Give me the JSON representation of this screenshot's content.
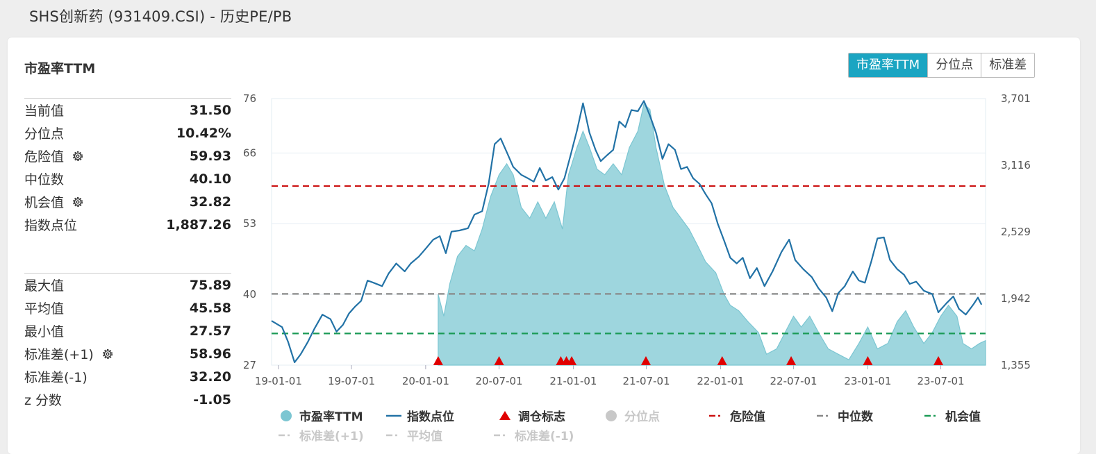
{
  "header": {
    "title": "SHS创新药 (931409.CSI) - 历史PE/PB"
  },
  "panel": {
    "title": "市盈率TTM"
  },
  "tabs": [
    {
      "label": "市盈率TTM",
      "active": true
    },
    {
      "label": "分位点",
      "active": false
    },
    {
      "label": "标准差",
      "active": false
    }
  ],
  "stats_top": [
    {
      "label": "当前值",
      "value": "31.50",
      "gear": false
    },
    {
      "label": "分位点",
      "value": "10.42%",
      "gear": false
    },
    {
      "label": "危险值",
      "value": "59.93",
      "gear": true
    },
    {
      "label": "中位数",
      "value": "40.10",
      "gear": false
    },
    {
      "label": "机会值",
      "value": "32.82",
      "gear": true
    },
    {
      "label": "指数点位",
      "value": "1,887.26",
      "gear": false
    }
  ],
  "stats_bottom": [
    {
      "label": "最大值",
      "value": "75.89",
      "gear": false
    },
    {
      "label": "平均值",
      "value": "45.58",
      "gear": false
    },
    {
      "label": "最小值",
      "value": "27.57",
      "gear": false
    },
    {
      "label": "标准差(+1)",
      "value": "58.96",
      "gear": true
    },
    {
      "label": "标准差(-1)",
      "value": "32.20",
      "gear": false
    },
    {
      "label": "z 分数",
      "value": "-1.05",
      "gear": false
    }
  ],
  "chart_data": {
    "type": "area",
    "left_axis": {
      "ticks": [
        "76",
        "66",
        "53",
        "40",
        "27"
      ],
      "range": [
        27,
        76
      ]
    },
    "right_axis": {
      "ticks": [
        "3,701",
        "3,116",
        "2,529",
        "1,942",
        "1,355"
      ],
      "range": [
        1355,
        3701
      ]
    },
    "x_ticks": [
      "19-01-01",
      "19-07-01",
      "20-01-01",
      "20-07-01",
      "21-01-01",
      "21-07-01",
      "22-01-01",
      "22-07-01",
      "23-01-01",
      "23-07-01"
    ],
    "x_range": [
      "2018-12-15",
      "2023-10-20"
    ],
    "pe_series": {
      "name": "市盈率TTM",
      "start": "2020-02-01",
      "points": [
        [
          "2020-02-01",
          40
        ],
        [
          "2020-02-15",
          36
        ],
        [
          "2020-03-01",
          42
        ],
        [
          "2020-03-20",
          47
        ],
        [
          "2020-04-10",
          49
        ],
        [
          "2020-05-01",
          48
        ],
        [
          "2020-05-20",
          52
        ],
        [
          "2020-06-10",
          58
        ],
        [
          "2020-07-01",
          62
        ],
        [
          "2020-07-20",
          64
        ],
        [
          "2020-08-05",
          62
        ],
        [
          "2020-08-25",
          56
        ],
        [
          "2020-09-15",
          54
        ],
        [
          "2020-10-05",
          57
        ],
        [
          "2020-10-25",
          54
        ],
        [
          "2020-11-15",
          57
        ],
        [
          "2020-12-05",
          52
        ],
        [
          "2020-12-20",
          62
        ],
        [
          "2021-01-10",
          67
        ],
        [
          "2021-01-25",
          70
        ],
        [
          "2021-02-10",
          67
        ],
        [
          "2021-03-01",
          63
        ],
        [
          "2021-03-20",
          62
        ],
        [
          "2021-04-10",
          64
        ],
        [
          "2021-05-01",
          62
        ],
        [
          "2021-05-20",
          67
        ],
        [
          "2021-06-10",
          70
        ],
        [
          "2021-06-25",
          75
        ],
        [
          "2021-07-10",
          74
        ],
        [
          "2021-07-25",
          67
        ],
        [
          "2021-08-15",
          60
        ],
        [
          "2021-09-05",
          56
        ],
        [
          "2021-09-25",
          54
        ],
        [
          "2021-10-15",
          52
        ],
        [
          "2021-11-05",
          49
        ],
        [
          "2021-11-25",
          46
        ],
        [
          "2021-12-20",
          44
        ],
        [
          "2022-01-10",
          40
        ],
        [
          "2022-01-25",
          38
        ],
        [
          "2022-02-15",
          37
        ],
        [
          "2022-03-10",
          35
        ],
        [
          "2022-04-05",
          33
        ],
        [
          "2022-04-25",
          29
        ],
        [
          "2022-05-20",
          30
        ],
        [
          "2022-06-10",
          33
        ],
        [
          "2022-07-01",
          36
        ],
        [
          "2022-07-20",
          34
        ],
        [
          "2022-08-10",
          36
        ],
        [
          "2022-09-01",
          33
        ],
        [
          "2022-09-25",
          30
        ],
        [
          "2022-10-20",
          29
        ],
        [
          "2022-11-15",
          28
        ],
        [
          "2022-12-10",
          31
        ],
        [
          "2023-01-01",
          34
        ],
        [
          "2023-01-25",
          30
        ],
        [
          "2023-02-20",
          31
        ],
        [
          "2023-03-15",
          35
        ],
        [
          "2023-04-05",
          37
        ],
        [
          "2023-04-25",
          34
        ],
        [
          "2023-05-20",
          31
        ],
        [
          "2023-06-10",
          33
        ],
        [
          "2023-07-01",
          36
        ],
        [
          "2023-07-20",
          38
        ],
        [
          "2023-08-10",
          36
        ],
        [
          "2023-08-25",
          31
        ],
        [
          "2023-09-15",
          30
        ],
        [
          "2023-10-05",
          31
        ],
        [
          "2023-10-20",
          31.5
        ]
      ]
    },
    "index_series": {
      "name": "指数点位",
      "points": [
        [
          "2018-12-15",
          1745
        ],
        [
          "2019-01-10",
          1690
        ],
        [
          "2019-01-25",
          1560
        ],
        [
          "2019-02-10",
          1380
        ],
        [
          "2019-02-25",
          1450
        ],
        [
          "2019-03-15",
          1560
        ],
        [
          "2019-04-01",
          1680
        ],
        [
          "2019-04-20",
          1800
        ],
        [
          "2019-05-10",
          1760
        ],
        [
          "2019-05-25",
          1650
        ],
        [
          "2019-06-10",
          1710
        ],
        [
          "2019-06-25",
          1810
        ],
        [
          "2019-07-10",
          1870
        ],
        [
          "2019-07-25",
          1920
        ],
        [
          "2019-08-10",
          2100
        ],
        [
          "2019-08-25",
          2080
        ],
        [
          "2019-09-15",
          2050
        ],
        [
          "2019-10-01",
          2160
        ],
        [
          "2019-10-20",
          2250
        ],
        [
          "2019-11-10",
          2180
        ],
        [
          "2019-11-25",
          2250
        ],
        [
          "2019-12-15",
          2310
        ],
        [
          "2020-01-01",
          2380
        ],
        [
          "2020-01-20",
          2460
        ],
        [
          "2020-02-05",
          2490
        ],
        [
          "2020-02-20",
          2340
        ],
        [
          "2020-03-05",
          2530
        ],
        [
          "2020-03-25",
          2540
        ],
        [
          "2020-04-15",
          2560
        ],
        [
          "2020-05-01",
          2680
        ],
        [
          "2020-05-20",
          2710
        ],
        [
          "2020-06-05",
          2950
        ],
        [
          "2020-06-20",
          3300
        ],
        [
          "2020-07-05",
          3350
        ],
        [
          "2020-07-20",
          3230
        ],
        [
          "2020-08-05",
          3100
        ],
        [
          "2020-08-25",
          3030
        ],
        [
          "2020-09-10",
          3000
        ],
        [
          "2020-09-25",
          2970
        ],
        [
          "2020-10-10",
          3090
        ],
        [
          "2020-10-25",
          2980
        ],
        [
          "2020-11-10",
          3010
        ],
        [
          "2020-11-25",
          2900
        ],
        [
          "2020-12-10",
          3000
        ],
        [
          "2020-12-25",
          3200
        ],
        [
          "2021-01-10",
          3420
        ],
        [
          "2021-01-25",
          3660
        ],
        [
          "2021-02-10",
          3400
        ],
        [
          "2021-02-25",
          3250
        ],
        [
          "2021-03-10",
          3150
        ],
        [
          "2021-03-25",
          3200
        ],
        [
          "2021-04-10",
          3250
        ],
        [
          "2021-04-25",
          3500
        ],
        [
          "2021-05-10",
          3450
        ],
        [
          "2021-05-25",
          3600
        ],
        [
          "2021-06-10",
          3590
        ],
        [
          "2021-06-25",
          3680
        ],
        [
          "2021-07-10",
          3550
        ],
        [
          "2021-07-25",
          3400
        ],
        [
          "2021-08-10",
          3170
        ],
        [
          "2021-08-25",
          3300
        ],
        [
          "2021-09-10",
          3250
        ],
        [
          "2021-09-25",
          3080
        ],
        [
          "2021-10-10",
          3100
        ],
        [
          "2021-10-25",
          3000
        ],
        [
          "2021-11-10",
          2950
        ],
        [
          "2021-11-25",
          2860
        ],
        [
          "2021-12-10",
          2780
        ],
        [
          "2021-12-25",
          2600
        ],
        [
          "2022-01-10",
          2450
        ],
        [
          "2022-01-25",
          2300
        ],
        [
          "2022-02-10",
          2250
        ],
        [
          "2022-02-25",
          2300
        ],
        [
          "2022-03-15",
          2120
        ],
        [
          "2022-04-01",
          2210
        ],
        [
          "2022-04-20",
          2050
        ],
        [
          "2022-05-10",
          2180
        ],
        [
          "2022-06-01",
          2350
        ],
        [
          "2022-06-20",
          2460
        ],
        [
          "2022-07-05",
          2280
        ],
        [
          "2022-07-25",
          2200
        ],
        [
          "2022-08-15",
          2130
        ],
        [
          "2022-09-01",
          2030
        ],
        [
          "2022-09-20",
          1950
        ],
        [
          "2022-10-05",
          1830
        ],
        [
          "2022-10-20",
          1990
        ],
        [
          "2022-11-05",
          2050
        ],
        [
          "2022-11-25",
          2180
        ],
        [
          "2022-12-10",
          2100
        ],
        [
          "2022-12-25",
          2080
        ],
        [
          "2023-01-10",
          2270
        ],
        [
          "2023-01-25",
          2470
        ],
        [
          "2023-02-10",
          2480
        ],
        [
          "2023-02-25",
          2280
        ],
        [
          "2023-03-15",
          2200
        ],
        [
          "2023-04-01",
          2150
        ],
        [
          "2023-04-15",
          2070
        ],
        [
          "2023-05-01",
          2090
        ],
        [
          "2023-05-20",
          2010
        ],
        [
          "2023-06-10",
          1980
        ],
        [
          "2023-06-25",
          1820
        ],
        [
          "2023-07-15",
          1900
        ],
        [
          "2023-08-01",
          1960
        ],
        [
          "2023-08-15",
          1850
        ],
        [
          "2023-09-01",
          1800
        ],
        [
          "2023-09-20",
          1890
        ],
        [
          "2023-10-01",
          1950
        ],
        [
          "2023-10-10",
          1887
        ]
      ]
    },
    "reference_lines": [
      {
        "name": "危险值",
        "value": 59.93,
        "color": "#cc1111"
      },
      {
        "name": "中位数",
        "value": 40.1,
        "color": "#888888"
      },
      {
        "name": "机会值",
        "value": 32.82,
        "color": "#1a9a55"
      }
    ],
    "rebalance_marks": [
      "2020-02-01",
      "2020-07-01",
      "2020-12-01",
      "2020-12-15",
      "2020-12-28",
      "2021-06-30",
      "2022-01-05",
      "2022-06-25",
      "2023-01-01",
      "2023-06-25"
    ],
    "legend": [
      {
        "label": "市盈率TTM",
        "kind": "circle",
        "color": "#7cc6d2",
        "active": true
      },
      {
        "label": "指数点位",
        "kind": "line",
        "color": "#2272a6",
        "active": true
      },
      {
        "label": "调仓标志",
        "kind": "triangle",
        "color": "#e00000",
        "active": true
      },
      {
        "label": "分位点",
        "kind": "circle",
        "color": "#c8c8c8",
        "active": false
      },
      {
        "label": "危险值",
        "kind": "dash",
        "color": "#cc1111",
        "active": true
      },
      {
        "label": "中位数",
        "kind": "dash",
        "color": "#888888",
        "active": true
      },
      {
        "label": "机会值",
        "kind": "dash",
        "color": "#1a9a55",
        "active": true
      },
      {
        "label": "标准差(+1)",
        "kind": "dash",
        "color": "#c8c8c8",
        "active": false
      },
      {
        "label": "平均值",
        "kind": "dash",
        "color": "#c8c8c8",
        "active": false
      },
      {
        "label": "标准差(-1)",
        "kind": "dash",
        "color": "#c8c8c8",
        "active": false
      }
    ]
  }
}
